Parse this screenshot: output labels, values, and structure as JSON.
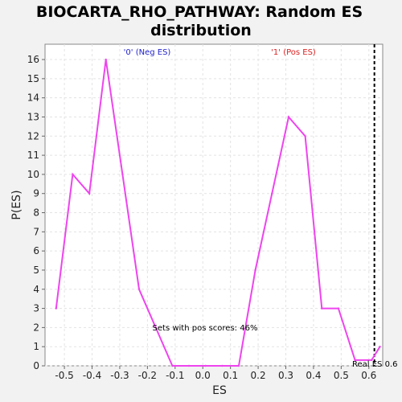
{
  "chart_data": {
    "type": "line",
    "title_line1": "BIOCARTA_RHO_PATHWAY: Random ES",
    "title_line2": "distribution",
    "xlabel": "ES",
    "ylabel": "P(ES)",
    "xlim": [
      -0.57,
      0.65
    ],
    "ylim": [
      0,
      16.8
    ],
    "x_ticks": [
      "-0.5",
      "-0.4",
      "-0.3",
      "-0.2",
      "-0.1",
      "0.0",
      "0.1",
      "0.2",
      "0.3",
      "0.4",
      "0.5",
      "0.6"
    ],
    "x_tick_values": [
      -0.5,
      -0.4,
      -0.3,
      -0.2,
      -0.1,
      0.0,
      0.1,
      0.2,
      0.3,
      0.4,
      0.5,
      0.6
    ],
    "y_ticks": [
      "0",
      "1",
      "2",
      "3",
      "4",
      "5",
      "6",
      "7",
      "8",
      "9",
      "10",
      "11",
      "12",
      "13",
      "14",
      "15",
      "16"
    ],
    "y_tick_values": [
      0,
      1,
      2,
      3,
      4,
      5,
      6,
      7,
      8,
      9,
      10,
      11,
      12,
      13,
      14,
      15,
      16
    ],
    "grid": true,
    "series": [
      {
        "color": "#ee44ee",
        "x": [
          -0.53,
          -0.47,
          -0.41,
          -0.35,
          -0.29,
          -0.23,
          -0.17,
          -0.11,
          -0.05,
          0.01,
          0.07,
          0.13,
          0.19,
          0.25,
          0.31,
          0.37,
          0.43,
          0.49,
          0.55,
          0.61,
          0.64
        ],
        "y": [
          3,
          10,
          9,
          16,
          10,
          4,
          2,
          0,
          0,
          0,
          0,
          0,
          5,
          9,
          13,
          12,
          3,
          3,
          0.3,
          0.3,
          1
        ]
      }
    ],
    "real_es": 0.62,
    "annotations": {
      "neg_label": "'0' (Neg ES)",
      "pos_label": "'1' (Pos ES)",
      "pos_scores": "Sets with pos scores: 46%",
      "real_es_label": "Real ES 0.6"
    },
    "colors": {
      "neg": "#2222cc",
      "pos": "#dd2222",
      "line": "#ee44ee",
      "real_es": "#000000"
    }
  }
}
